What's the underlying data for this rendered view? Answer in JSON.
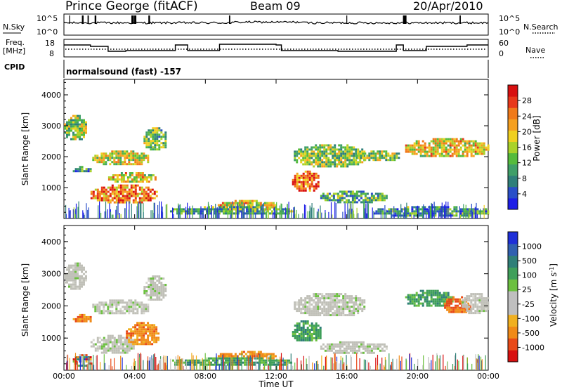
{
  "header": {
    "station": "Prince George (fitACF)",
    "beam": "Beam 09",
    "date": "20/Apr/2010"
  },
  "side_labels": {
    "nsky": "N.Sky",
    "freq_line1": "Freq.",
    "freq_line2": "[MHz]",
    "cpid": "CPID",
    "nsearch": "N.Search",
    "nave": "Nave"
  },
  "noise_panel": {
    "left_ticks": [
      "10^5",
      "10^0"
    ],
    "right_ticks": [
      "10^5",
      "10^0"
    ]
  },
  "freq_panel": {
    "left_ticks": [
      "18",
      "8"
    ],
    "right_ticks": [
      "60",
      "0"
    ]
  },
  "cpid_text": "normalsound (fast) -157",
  "x_axis": {
    "label": "Time UT",
    "ticks": [
      "00:00",
      "04:00",
      "08:00",
      "12:00",
      "16:00",
      "20:00",
      "00:00"
    ]
  },
  "chart_data": [
    {
      "type": "heatmap",
      "quantity": "power",
      "ylabel": "Slant Range [km]",
      "x_range_hours": [
        0,
        24
      ],
      "ylim": [
        0,
        4500
      ],
      "yticks": [
        1000,
        2000,
        3000,
        4000
      ],
      "colorbar": {
        "label": "Power [dB]",
        "ticks": [
          "4",
          "8",
          "12",
          "16",
          "20",
          "24",
          "28"
        ],
        "colors": [
          "#1e1ee6",
          "#2a4fc8",
          "#2f7f7a",
          "#3f9f68",
          "#55bb3c",
          "#aad22a",
          "#f0d020",
          "#f5a020",
          "#f07a1a",
          "#e8381a",
          "#d81010"
        ]
      },
      "regions": [
        {
          "t": [
            0.0,
            1.2
          ],
          "r": [
            2550,
            3350
          ],
          "level": 0.45
        },
        {
          "t": [
            0.5,
            1.5
          ],
          "r": [
            1500,
            1700
          ],
          "level": 0.3
        },
        {
          "t": [
            1.5,
            5.2
          ],
          "r": [
            550,
            1100
          ],
          "level": 0.75
        },
        {
          "t": [
            1.6,
            4.8
          ],
          "r": [
            1750,
            2200
          ],
          "level": 0.55
        },
        {
          "t": [
            2.5,
            5.2
          ],
          "r": [
            1200,
            1500
          ],
          "level": 0.6
        },
        {
          "t": [
            4.5,
            5.8
          ],
          "r": [
            2200,
            2950
          ],
          "level": 0.4
        },
        {
          "t": [
            8.7,
            12.0
          ],
          "r": [
            300,
            600
          ],
          "level": 0.6
        },
        {
          "t": [
            6.0,
            13.0
          ],
          "r": [
            150,
            400
          ],
          "level": 0.35
        },
        {
          "t": [
            12.9,
            14.4
          ],
          "r": [
            900,
            1550
          ],
          "level": 0.8
        },
        {
          "t": [
            13.0,
            17.0
          ],
          "r": [
            1700,
            2400
          ],
          "level": 0.45
        },
        {
          "t": [
            14.5,
            18.2
          ],
          "r": [
            550,
            900
          ],
          "level": 0.35
        },
        {
          "t": [
            16.5,
            19.0
          ],
          "r": [
            1900,
            2200
          ],
          "level": 0.45
        },
        {
          "t": [
            19.3,
            24.0
          ],
          "r": [
            2000,
            2600
          ],
          "level": 0.6
        },
        {
          "t": [
            17.5,
            24.0
          ],
          "r": [
            100,
            400
          ],
          "level": 0.3
        }
      ]
    },
    {
      "type": "heatmap",
      "quantity": "velocity",
      "ylabel": "Slant Range [km]",
      "x_range_hours": [
        0,
        24
      ],
      "ylim": [
        0,
        4500
      ],
      "yticks": [
        1000,
        2000,
        3000,
        4000
      ],
      "colorbar": {
        "label": "Velocity [m s^-1]",
        "ticks": [
          "1000",
          "500",
          "100",
          "25",
          "-25",
          "-100",
          "-500",
          "-1000"
        ],
        "colors": [
          "#1e2fd8",
          "#3060b0",
          "#2f7f78",
          "#3f9f5a",
          "#6cc040",
          "#bfbfbf",
          "#bfbfbf",
          "#f0b020",
          "#f08a18",
          "#e84a18",
          "#d81010"
        ]
      },
      "regions": [
        {
          "t": [
            0.0,
            1.2
          ],
          "r": [
            2550,
            3350
          ],
          "level": "gray"
        },
        {
          "t": [
            0.5,
            1.5
          ],
          "r": [
            1500,
            1750
          ],
          "level": "orange"
        },
        {
          "t": [
            1.5,
            4.0
          ],
          "r": [
            550,
            1100
          ],
          "level": "gray"
        },
        {
          "t": [
            3.5,
            5.3
          ],
          "r": [
            800,
            1500
          ],
          "level": "orange"
        },
        {
          "t": [
            1.6,
            4.8
          ],
          "r": [
            1750,
            2200
          ],
          "level": "gray"
        },
        {
          "t": [
            4.5,
            5.8
          ],
          "r": [
            2200,
            2950
          ],
          "level": "gray"
        },
        {
          "t": [
            8.7,
            12.0
          ],
          "r": [
            350,
            600
          ],
          "level": "orange"
        },
        {
          "t": [
            6.0,
            13.0
          ],
          "r": [
            150,
            400
          ],
          "level": "green"
        },
        {
          "t": [
            12.9,
            14.5
          ],
          "r": [
            900,
            1550
          ],
          "level": "green"
        },
        {
          "t": [
            13.0,
            17.0
          ],
          "r": [
            1700,
            2400
          ],
          "level": "gray"
        },
        {
          "t": [
            14.5,
            18.2
          ],
          "r": [
            550,
            900
          ],
          "level": "gray"
        },
        {
          "t": [
            19.3,
            22.0
          ],
          "r": [
            2000,
            2500
          ],
          "level": "green"
        },
        {
          "t": [
            21.5,
            23.0
          ],
          "r": [
            1800,
            2300
          ],
          "level": "red"
        },
        {
          "t": [
            22.5,
            24.0
          ],
          "r": [
            1800,
            2400
          ],
          "level": "gray"
        },
        {
          "t": [
            0.5,
            1.5
          ],
          "r": [
            150,
            500
          ],
          "level": "mixed"
        }
      ]
    }
  ]
}
